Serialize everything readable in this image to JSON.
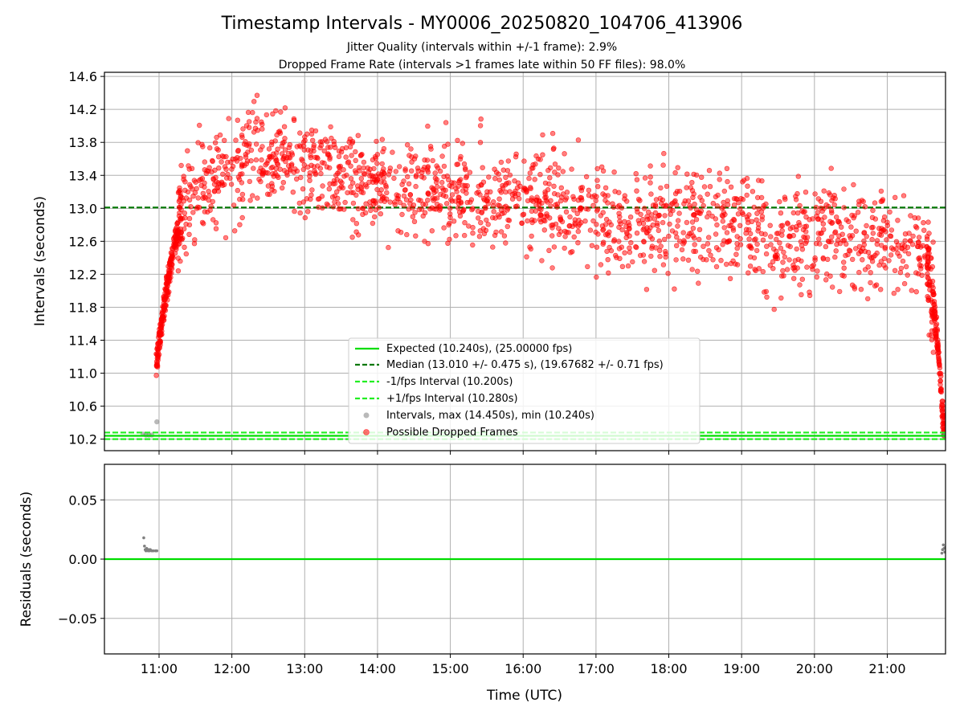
{
  "chart_data": [
    {
      "type": "scatter",
      "title": "Timestamp Intervals - MY0006_20250820_104706_413906",
      "subtitle_lines": [
        "Jitter Quality (intervals within +/-1 frame): 2.9%",
        "Dropped Frame Rate (intervals >1 frames late within 50 FF files): 98.0%"
      ],
      "xlabel": "",
      "ylabel": "Intervals (seconds)",
      "x_unit": "hours UTC",
      "xlim": [
        10.25,
        21.8
      ],
      "ylim": [
        10.06,
        14.65
      ],
      "yticks": [
        10.2,
        10.6,
        11.0,
        11.4,
        11.8,
        12.2,
        12.6,
        13.0,
        13.4,
        13.8,
        14.2,
        14.6
      ],
      "ytick_labels": [
        "10.2",
        "10.6",
        "11.0",
        "11.4",
        "11.8",
        "12.2",
        "12.6",
        "13.0",
        "13.4",
        "13.8",
        "14.2",
        "14.6"
      ],
      "grid": true,
      "legend_position": "lower-center",
      "legend": [
        "Expected (10.240s), (25.00000 fps)",
        "Median (13.010 +/- 0.475 s), (19.67682 +/- 0.71 fps)",
        "-1/fps Interval (10.200s)",
        "+1/fps Interval (10.280s)",
        "Intervals, max (14.450s), min (10.240s)",
        "Possible Dropped Frames"
      ],
      "reference_lines": {
        "expected": 10.24,
        "median": 13.01,
        "minus_1_fps": 10.2,
        "plus_1_fps": 10.28
      },
      "intervals_gray": {
        "x": [
          10.78,
          10.82,
          10.86,
          10.9,
          10.97,
          21.77,
          21.79,
          21.8
        ],
        "y": [
          10.26,
          10.25,
          10.25,
          10.25,
          10.41,
          10.25,
          10.24,
          10.25
        ]
      },
      "dropped_frames_trend": {
        "x": [
          10.96,
          11.02,
          11.08,
          11.14,
          11.2,
          11.3,
          11.45,
          11.6,
          11.8,
          12.0,
          12.2,
          12.4,
          12.6,
          12.8,
          13.0,
          13.3,
          13.6,
          14.0,
          14.5,
          15.0,
          15.5,
          16.0,
          16.5,
          17.0,
          17.5,
          18.0,
          18.5,
          19.0,
          19.2,
          19.4,
          19.6,
          19.8,
          20.0,
          20.3,
          20.6,
          20.9,
          21.2,
          21.4,
          21.55,
          21.6,
          21.65,
          21.7,
          21.73,
          21.76,
          21.79
        ],
        "y": [
          11.1,
          11.5,
          11.9,
          12.2,
          12.5,
          12.9,
          13.2,
          13.3,
          13.4,
          13.5,
          13.55,
          13.6,
          13.6,
          13.6,
          13.55,
          13.45,
          13.35,
          13.3,
          13.25,
          13.2,
          13.15,
          13.1,
          13.0,
          12.95,
          12.85,
          12.8,
          12.8,
          12.85,
          12.7,
          12.5,
          12.55,
          12.65,
          12.75,
          12.7,
          12.65,
          12.6,
          12.55,
          12.5,
          12.35,
          12.1,
          11.75,
          11.3,
          10.9,
          10.5,
          10.25
        ]
      },
      "dropped_frames_spread": 0.42,
      "dropped_frames_count": 2100
    },
    {
      "type": "scatter",
      "title": "",
      "xlabel": "Time (UTC)",
      "ylabel": "Residuals (seconds)",
      "xlim": [
        10.25,
        21.8
      ],
      "ylim": [
        -0.08,
        0.08
      ],
      "yticks": [
        -0.05,
        0.0,
        0.05
      ],
      "ytick_labels": [
        "−0.05",
        "0.00",
        "0.05"
      ],
      "xticks": [
        11,
        12,
        13,
        14,
        15,
        16,
        17,
        18,
        19,
        20,
        21
      ],
      "xtick_labels": [
        "11:00",
        "12:00",
        "13:00",
        "14:00",
        "15:00",
        "16:00",
        "17:00",
        "18:00",
        "19:00",
        "20:00",
        "21:00"
      ],
      "grid": true,
      "zero_line": 0.0,
      "residual_points": {
        "x": [
          10.79,
          10.8,
          10.81,
          10.82,
          10.83,
          10.84,
          10.85,
          10.86,
          10.87,
          10.88,
          10.9,
          10.92,
          10.95,
          10.97,
          21.75,
          21.76,
          21.77,
          21.78,
          21.79,
          21.8
        ],
        "y": [
          0.018,
          0.011,
          0.008,
          0.007,
          0.009,
          0.008,
          0.007,
          0.008,
          0.007,
          0.008,
          0.007,
          0.007,
          0.007,
          0.007,
          0.005,
          0.008,
          0.012,
          0.009,
          0.006,
          0.01
        ]
      }
    }
  ],
  "colors": {
    "dropped": "#ff0000",
    "interval_gray": "#808080",
    "expected": "#00dd00",
    "median": "#007700",
    "fps_band": "#22ee22",
    "grid": "#b0b0b0"
  }
}
